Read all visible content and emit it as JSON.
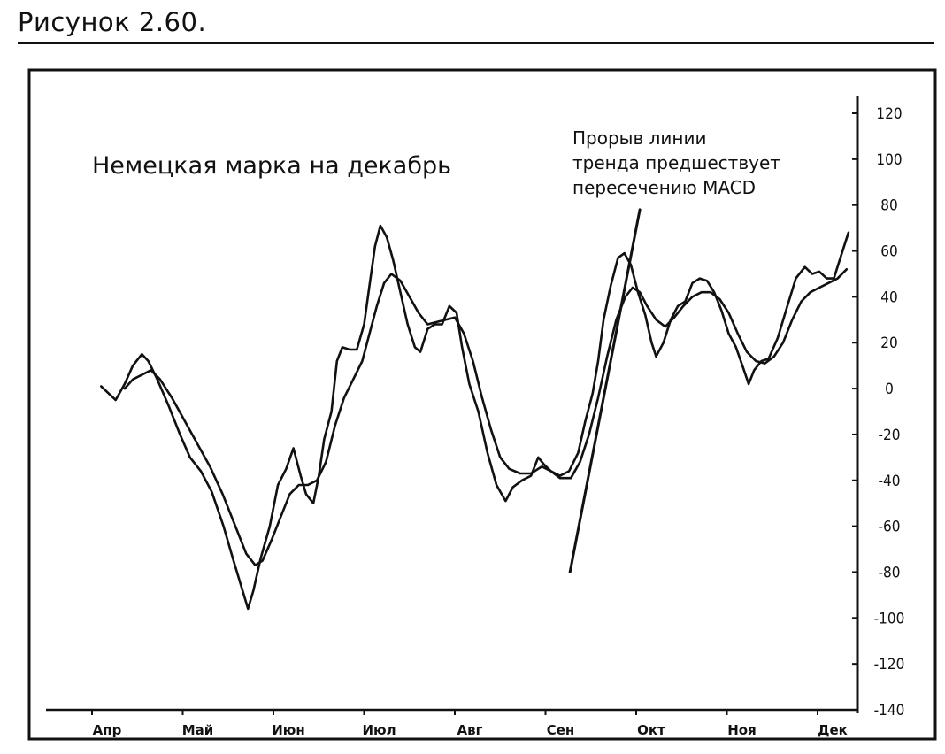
{
  "figure_caption": "Рисунок 2.60.",
  "chart_data": {
    "type": "line",
    "title": "Немецкая марка на декабрь",
    "annotation": {
      "lines": [
        "Прорыв линии",
        "тренда предшествует",
        "пересечению MACD"
      ]
    },
    "xlabel": "",
    "ylabel": "",
    "y_axis_position": "right",
    "ylim": [
      -140,
      120
    ],
    "yticks": [
      120,
      100,
      80,
      60,
      40,
      20,
      0,
      -20,
      -40,
      -60,
      -80,
      -100,
      -120,
      -140
    ],
    "ytick_labels": [
      "120",
      "100",
      "80",
      "60",
      "40",
      "20",
      "0",
      "-20",
      "-40",
      "-60",
      "-80",
      "-100",
      "-120",
      "-140"
    ],
    "xlim": [
      -0.1,
      8.6
    ],
    "xticks": [
      0,
      1,
      2,
      3,
      4,
      5,
      6,
      7,
      8
    ],
    "xtick_labels": [
      "Апр",
      "Май",
      "Июн",
      "Июл",
      "Авг",
      "Сен",
      "Окт",
      "Ноя",
      "Дек"
    ],
    "grid": false,
    "legend": "none",
    "series": [
      {
        "points": [
          [
            0.1,
            1
          ],
          [
            0.18,
            -2
          ],
          [
            0.26,
            -5
          ],
          [
            0.36,
            2
          ],
          [
            0.45,
            10
          ],
          [
            0.55,
            15
          ],
          [
            0.62,
            12
          ],
          [
            0.72,
            4
          ],
          [
            0.85,
            -8
          ],
          [
            0.97,
            -20
          ],
          [
            1.08,
            -30
          ],
          [
            1.2,
            -36
          ],
          [
            1.32,
            -45
          ],
          [
            1.45,
            -60
          ],
          [
            1.56,
            -75
          ],
          [
            1.66,
            -88
          ],
          [
            1.72,
            -96
          ],
          [
            1.78,
            -88
          ],
          [
            1.86,
            -74
          ],
          [
            1.96,
            -60
          ],
          [
            2.05,
            -42
          ],
          [
            2.14,
            -35
          ],
          [
            2.22,
            -26
          ],
          [
            2.3,
            -38
          ],
          [
            2.36,
            -46
          ],
          [
            2.44,
            -50
          ],
          [
            2.5,
            -38
          ],
          [
            2.56,
            -22
          ],
          [
            2.64,
            -10
          ],
          [
            2.7,
            12
          ],
          [
            2.76,
            18
          ],
          [
            2.84,
            17
          ],
          [
            2.92,
            17
          ],
          [
            3.0,
            28
          ],
          [
            3.06,
            45
          ],
          [
            3.12,
            62
          ],
          [
            3.18,
            71
          ],
          [
            3.25,
            66
          ],
          [
            3.32,
            56
          ],
          [
            3.4,
            42
          ],
          [
            3.48,
            28
          ],
          [
            3.56,
            18
          ],
          [
            3.62,
            16
          ],
          [
            3.7,
            26
          ],
          [
            3.78,
            28
          ],
          [
            3.86,
            28
          ],
          [
            3.94,
            36
          ],
          [
            4.02,
            33
          ],
          [
            4.08,
            18
          ],
          [
            4.16,
            2
          ],
          [
            4.26,
            -10
          ],
          [
            4.36,
            -28
          ],
          [
            4.46,
            -42
          ],
          [
            4.56,
            -49
          ],
          [
            4.64,
            -43
          ],
          [
            4.74,
            -40
          ],
          [
            4.84,
            -38
          ],
          [
            4.92,
            -30
          ],
          [
            4.98,
            -33
          ],
          [
            5.06,
            -36
          ],
          [
            5.16,
            -38
          ],
          [
            5.26,
            -36
          ],
          [
            5.36,
            -28
          ],
          [
            5.44,
            -14
          ],
          [
            5.52,
            -2
          ],
          [
            5.58,
            12
          ],
          [
            5.64,
            30
          ],
          [
            5.72,
            45
          ],
          [
            5.8,
            57
          ],
          [
            5.87,
            59
          ],
          [
            5.94,
            54
          ],
          [
            6.02,
            42
          ],
          [
            6.1,
            32
          ],
          [
            6.17,
            20
          ],
          [
            6.22,
            14
          ],
          [
            6.3,
            20
          ],
          [
            6.38,
            30
          ],
          [
            6.46,
            36
          ],
          [
            6.54,
            38
          ],
          [
            6.62,
            46
          ],
          [
            6.7,
            48
          ],
          [
            6.78,
            47
          ],
          [
            6.86,
            42
          ],
          [
            6.94,
            34
          ],
          [
            7.02,
            24
          ],
          [
            7.1,
            18
          ],
          [
            7.18,
            9
          ],
          [
            7.24,
            2
          ],
          [
            7.3,
            8
          ],
          [
            7.38,
            12
          ],
          [
            7.46,
            13
          ],
          [
            7.56,
            22
          ],
          [
            7.66,
            35
          ],
          [
            7.76,
            48
          ],
          [
            7.86,
            53
          ],
          [
            7.94,
            50
          ],
          [
            8.02,
            51
          ],
          [
            8.1,
            48
          ],
          [
            8.18,
            48
          ],
          [
            8.26,
            58
          ],
          [
            8.34,
            68
          ]
        ]
      },
      {
        "points": [
          [
            0.36,
            0
          ],
          [
            0.45,
            4
          ],
          [
            0.55,
            6
          ],
          [
            0.65,
            8
          ],
          [
            0.75,
            4
          ],
          [
            0.88,
            -4
          ],
          [
            1.02,
            -14
          ],
          [
            1.16,
            -24
          ],
          [
            1.3,
            -34
          ],
          [
            1.44,
            -46
          ],
          [
            1.58,
            -60
          ],
          [
            1.7,
            -72
          ],
          [
            1.8,
            -77
          ],
          [
            1.88,
            -75
          ],
          [
            1.98,
            -66
          ],
          [
            2.08,
            -56
          ],
          [
            2.18,
            -46
          ],
          [
            2.28,
            -42
          ],
          [
            2.38,
            -42
          ],
          [
            2.48,
            -40
          ],
          [
            2.58,
            -32
          ],
          [
            2.68,
            -16
          ],
          [
            2.78,
            -4
          ],
          [
            2.88,
            4
          ],
          [
            2.98,
            12
          ],
          [
            3.06,
            24
          ],
          [
            3.14,
            36
          ],
          [
            3.22,
            46
          ],
          [
            3.3,
            50
          ],
          [
            3.4,
            47
          ],
          [
            3.5,
            40
          ],
          [
            3.6,
            33
          ],
          [
            3.7,
            28
          ],
          [
            3.8,
            29
          ],
          [
            3.9,
            30
          ],
          [
            4.0,
            31
          ],
          [
            4.1,
            24
          ],
          [
            4.2,
            12
          ],
          [
            4.3,
            -4
          ],
          [
            4.4,
            -18
          ],
          [
            4.5,
            -30
          ],
          [
            4.6,
            -35
          ],
          [
            4.72,
            -37
          ],
          [
            4.84,
            -37
          ],
          [
            4.96,
            -34
          ],
          [
            5.06,
            -36
          ],
          [
            5.16,
            -39
          ],
          [
            5.28,
            -39
          ],
          [
            5.38,
            -32
          ],
          [
            5.48,
            -20
          ],
          [
            5.58,
            -4
          ],
          [
            5.68,
            14
          ],
          [
            5.78,
            30
          ],
          [
            5.88,
            40
          ],
          [
            5.96,
            44
          ],
          [
            6.04,
            42
          ],
          [
            6.12,
            36
          ],
          [
            6.22,
            30
          ],
          [
            6.32,
            27
          ],
          [
            6.42,
            31
          ],
          [
            6.52,
            36
          ],
          [
            6.62,
            40
          ],
          [
            6.72,
            42
          ],
          [
            6.82,
            42
          ],
          [
            6.92,
            39
          ],
          [
            7.02,
            33
          ],
          [
            7.12,
            24
          ],
          [
            7.22,
            16
          ],
          [
            7.32,
            12
          ],
          [
            7.42,
            11
          ],
          [
            7.52,
            14
          ],
          [
            7.62,
            20
          ],
          [
            7.72,
            30
          ],
          [
            7.82,
            38
          ],
          [
            7.92,
            42
          ],
          [
            8.02,
            44
          ],
          [
            8.12,
            46
          ],
          [
            8.22,
            48
          ],
          [
            8.32,
            52
          ]
        ]
      }
    ],
    "trendline": {
      "points": [
        [
          5.27,
          -80
        ],
        [
          6.04,
          78
        ]
      ]
    }
  }
}
